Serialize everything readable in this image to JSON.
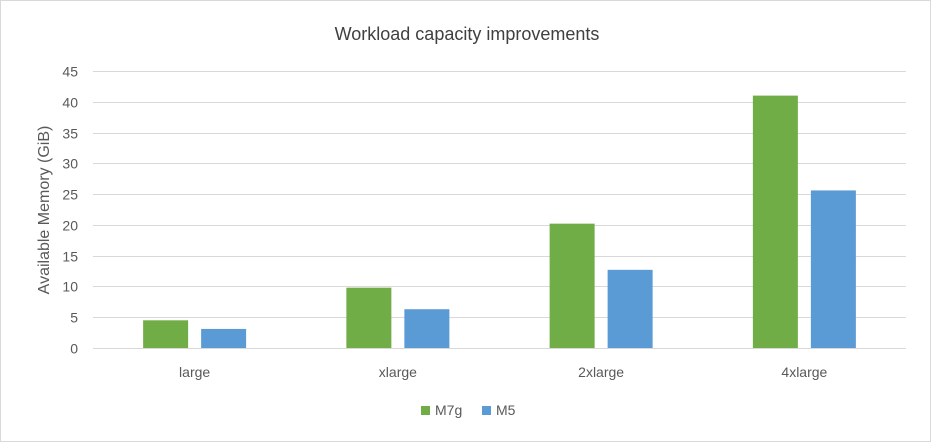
{
  "chart_data": {
    "type": "bar",
    "title": "Workload capacity improvements",
    "xlabel": "",
    "ylabel": "Available Memory (GiB)",
    "ylim": [
      0,
      45
    ],
    "yticks": [
      0,
      5,
      10,
      15,
      20,
      25,
      30,
      35,
      40,
      45
    ],
    "grid": true,
    "legend_position": "bottom",
    "categories": [
      "large",
      "xlarge",
      "2xlarge",
      "4xlarge"
    ],
    "series": [
      {
        "name": "M7g",
        "color": "#70ad47",
        "values": [
          4.5,
          9.8,
          20.2,
          41
        ]
      },
      {
        "name": "M5",
        "color": "#5b9bd5",
        "values": [
          3.1,
          6.3,
          12.7,
          25.6
        ]
      }
    ]
  }
}
